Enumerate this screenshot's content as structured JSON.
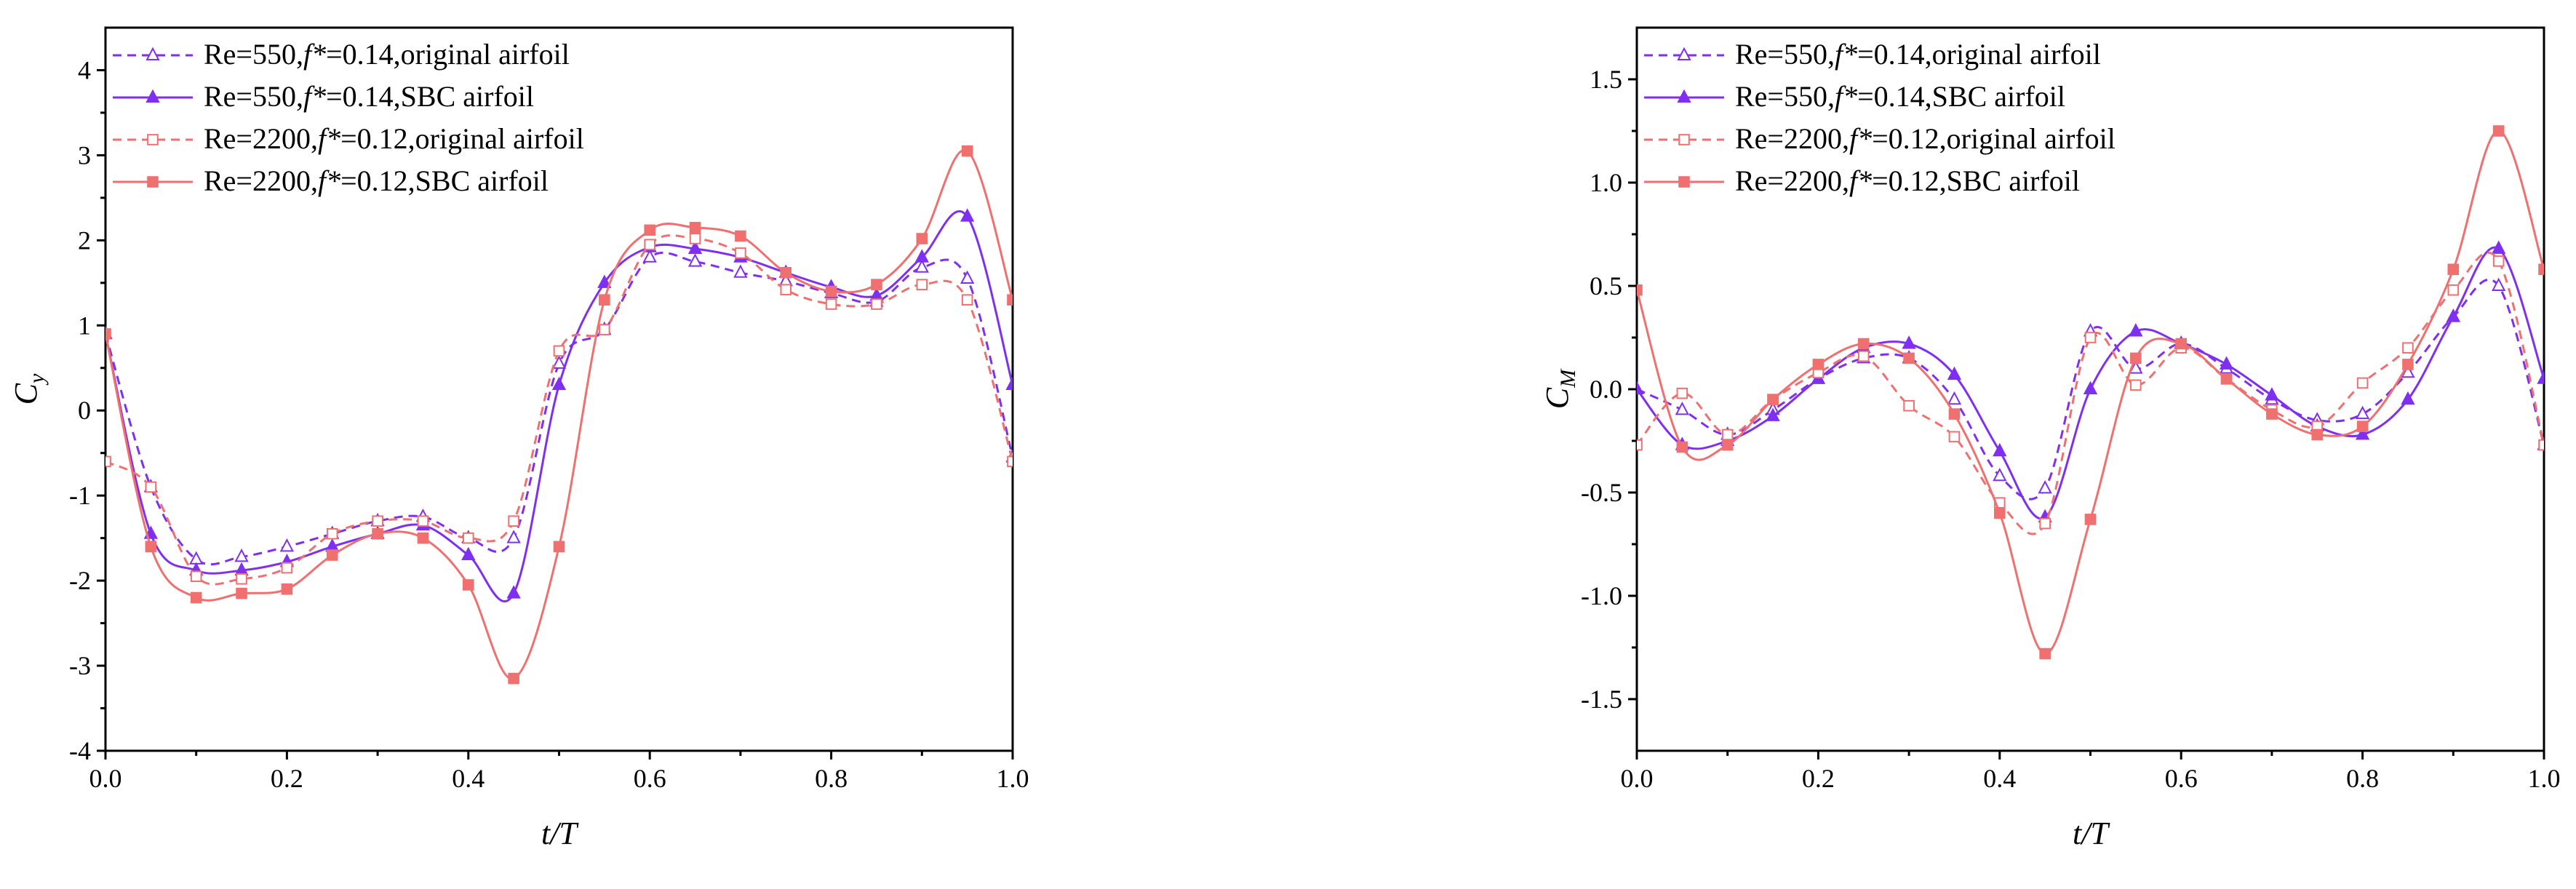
{
  "chart_data": [
    {
      "type": "line",
      "ylabel": "Cy",
      "ylabel_main": "C",
      "ylabel_sub": "y",
      "xlabel": "t/T",
      "xlim": [
        0,
        1
      ],
      "ylim": [
        -4,
        4.5
      ],
      "xticks": [
        0.0,
        0.2,
        0.4,
        0.6,
        0.8,
        1.0
      ],
      "xtick_labels": [
        "0.0",
        "0.2",
        "0.4",
        "0.6",
        "0.8",
        "1.0"
      ],
      "yticks": [
        -4,
        -3,
        -2,
        -1,
        0,
        1,
        2,
        3,
        4
      ],
      "ytick_labels": [
        "-4",
        "-3",
        "-2",
        "-1",
        "0",
        "1",
        "2",
        "3",
        "4"
      ],
      "legend_position": "top-left",
      "series": [
        {
          "name": "Re=550,f*=0.14,original airfoil",
          "name_parts": [
            "Re=550,",
            "f*",
            "=0.14,original airfoil"
          ],
          "color": "#7f2ff0",
          "dash": true,
          "marker": "triangle-open",
          "x": [
            0,
            0.05,
            0.1,
            0.15,
            0.2,
            0.25,
            0.3,
            0.35,
            0.4,
            0.45,
            0.5,
            0.55,
            0.6,
            0.65,
            0.7,
            0.75,
            0.8,
            0.85,
            0.9,
            0.95,
            1.0
          ],
          "y": [
            0.9,
            -0.9,
            -1.75,
            -1.72,
            -1.6,
            -1.45,
            -1.3,
            -1.25,
            -1.5,
            -1.5,
            0.55,
            0.95,
            1.8,
            1.75,
            1.62,
            1.52,
            1.38,
            1.28,
            1.68,
            1.55,
            -0.55
          ]
        },
        {
          "name": "Re=550,f*=0.14,SBC airfoil",
          "name_parts": [
            "Re=550,",
            "f*",
            "=0.14,SBC airfoil"
          ],
          "color": "#7f2ff0",
          "dash": false,
          "marker": "triangle-filled",
          "x": [
            0,
            0.05,
            0.1,
            0.15,
            0.2,
            0.25,
            0.3,
            0.35,
            0.4,
            0.45,
            0.5,
            0.55,
            0.6,
            0.65,
            0.7,
            0.75,
            0.8,
            0.85,
            0.9,
            0.95,
            1.0
          ],
          "y": [
            0.9,
            -1.45,
            -1.88,
            -1.88,
            -1.78,
            -1.6,
            -1.45,
            -1.35,
            -1.7,
            -2.15,
            0.3,
            1.5,
            1.92,
            1.9,
            1.8,
            1.62,
            1.45,
            1.35,
            1.8,
            2.28,
            0.3
          ]
        },
        {
          "name": "Re=2200,f*=0.12,original airfoil",
          "name_parts": [
            "Re=2200,",
            "f*",
            "=0.12,original airfoil"
          ],
          "color": "#f07070",
          "dash": true,
          "marker": "square-open",
          "x": [
            0,
            0.05,
            0.1,
            0.15,
            0.2,
            0.25,
            0.3,
            0.35,
            0.4,
            0.45,
            0.5,
            0.55,
            0.6,
            0.65,
            0.7,
            0.75,
            0.8,
            0.85,
            0.9,
            0.95,
            1.0
          ],
          "y": [
            -0.6,
            -0.9,
            -1.95,
            -1.98,
            -1.85,
            -1.45,
            -1.3,
            -1.3,
            -1.5,
            -1.3,
            0.7,
            0.95,
            1.95,
            2.02,
            1.85,
            1.42,
            1.25,
            1.25,
            1.48,
            1.3,
            -0.6
          ]
        },
        {
          "name": "Re=2200,f*=0.12,SBC airfoil",
          "name_parts": [
            "Re=2200,",
            "f*",
            "=0.12,SBC airfoil"
          ],
          "color": "#f07070",
          "dash": false,
          "marker": "square-filled",
          "x": [
            0,
            0.05,
            0.1,
            0.15,
            0.2,
            0.25,
            0.3,
            0.35,
            0.4,
            0.45,
            0.5,
            0.55,
            0.6,
            0.65,
            0.7,
            0.75,
            0.8,
            0.85,
            0.9,
            0.95,
            1.0
          ],
          "y": [
            0.9,
            -1.6,
            -2.2,
            -2.15,
            -2.1,
            -1.7,
            -1.45,
            -1.5,
            -2.05,
            -3.15,
            -1.6,
            1.3,
            2.12,
            2.15,
            2.05,
            1.62,
            1.4,
            1.48,
            2.02,
            3.05,
            1.3
          ]
        }
      ]
    },
    {
      "type": "line",
      "ylabel": "CM",
      "ylabel_main": "C",
      "ylabel_sub": "M",
      "xlabel": "t/T",
      "xlim": [
        0,
        1
      ],
      "ylim": [
        -1.75,
        1.75
      ],
      "xticks": [
        0.0,
        0.2,
        0.4,
        0.6,
        0.8,
        1.0
      ],
      "xtick_labels": [
        "0.0",
        "0.2",
        "0.4",
        "0.6",
        "0.8",
        "1.0"
      ],
      "yticks": [
        -1.5,
        -1.0,
        -0.5,
        0.0,
        0.5,
        1.0,
        1.5
      ],
      "ytick_labels": [
        "-1.5",
        "-1.0",
        "-0.5",
        "0.0",
        "0.5",
        "1.0",
        "1.5"
      ],
      "legend_position": "top-left",
      "series": [
        {
          "name": "Re=550,f*=0.14,original airfoil",
          "name_parts": [
            "Re=550,",
            "f*",
            "=0.14,original airfoil"
          ],
          "color": "#7f2ff0",
          "dash": true,
          "marker": "triangle-open",
          "x": [
            0,
            0.05,
            0.1,
            0.15,
            0.2,
            0.25,
            0.3,
            0.35,
            0.4,
            0.45,
            0.5,
            0.55,
            0.6,
            0.65,
            0.7,
            0.75,
            0.8,
            0.85,
            0.9,
            0.95,
            1.0
          ],
          "y": [
            0.0,
            -0.1,
            -0.22,
            -0.1,
            0.05,
            0.15,
            0.15,
            -0.05,
            -0.42,
            -0.48,
            0.28,
            0.1,
            0.22,
            0.1,
            -0.05,
            -0.15,
            -0.12,
            0.08,
            0.35,
            0.5,
            -0.27
          ]
        },
        {
          "name": "Re=550,f*=0.14,SBC airfoil",
          "name_parts": [
            "Re=550,",
            "f*",
            "=0.14,SBC airfoil"
          ],
          "color": "#7f2ff0",
          "dash": false,
          "marker": "triangle-filled",
          "x": [
            0,
            0.05,
            0.1,
            0.15,
            0.2,
            0.25,
            0.3,
            0.35,
            0.4,
            0.45,
            0.5,
            0.55,
            0.6,
            0.65,
            0.7,
            0.75,
            0.8,
            0.85,
            0.9,
            0.95,
            1.0
          ],
          "y": [
            0.0,
            -0.27,
            -0.25,
            -0.13,
            0.05,
            0.2,
            0.22,
            0.07,
            -0.3,
            -0.62,
            0.0,
            0.28,
            0.22,
            0.12,
            -0.03,
            -0.18,
            -0.22,
            -0.05,
            0.35,
            0.68,
            0.05
          ]
        },
        {
          "name": "Re=2200,f*=0.12,original airfoil",
          "name_parts": [
            "Re=2200,",
            "f*",
            "=0.12,original airfoil"
          ],
          "color": "#f07070",
          "dash": true,
          "marker": "square-open",
          "x": [
            0,
            0.05,
            0.1,
            0.15,
            0.2,
            0.25,
            0.3,
            0.35,
            0.4,
            0.45,
            0.5,
            0.55,
            0.6,
            0.65,
            0.7,
            0.75,
            0.8,
            0.85,
            0.9,
            0.95,
            1.0
          ],
          "y": [
            -0.27,
            -0.02,
            -0.22,
            -0.05,
            0.08,
            0.16,
            -0.08,
            -0.23,
            -0.55,
            -0.65,
            0.25,
            0.02,
            0.2,
            0.05,
            -0.1,
            -0.18,
            0.03,
            0.2,
            0.48,
            0.62,
            -0.27
          ]
        },
        {
          "name": "Re=2200,f*=0.12,SBC airfoil",
          "name_parts": [
            "Re=2200,",
            "f*",
            "=0.12,SBC airfoil"
          ],
          "color": "#f07070",
          "dash": false,
          "marker": "square-filled",
          "x": [
            0,
            0.05,
            0.1,
            0.15,
            0.2,
            0.25,
            0.3,
            0.35,
            0.4,
            0.45,
            0.5,
            0.55,
            0.6,
            0.65,
            0.7,
            0.75,
            0.8,
            0.85,
            0.9,
            0.95,
            1.0
          ],
          "y": [
            0.48,
            -0.28,
            -0.27,
            -0.05,
            0.12,
            0.22,
            0.15,
            -0.12,
            -0.6,
            -1.28,
            -0.63,
            0.15,
            0.22,
            0.05,
            -0.12,
            -0.22,
            -0.18,
            0.12,
            0.58,
            1.25,
            0.58
          ]
        }
      ]
    }
  ]
}
